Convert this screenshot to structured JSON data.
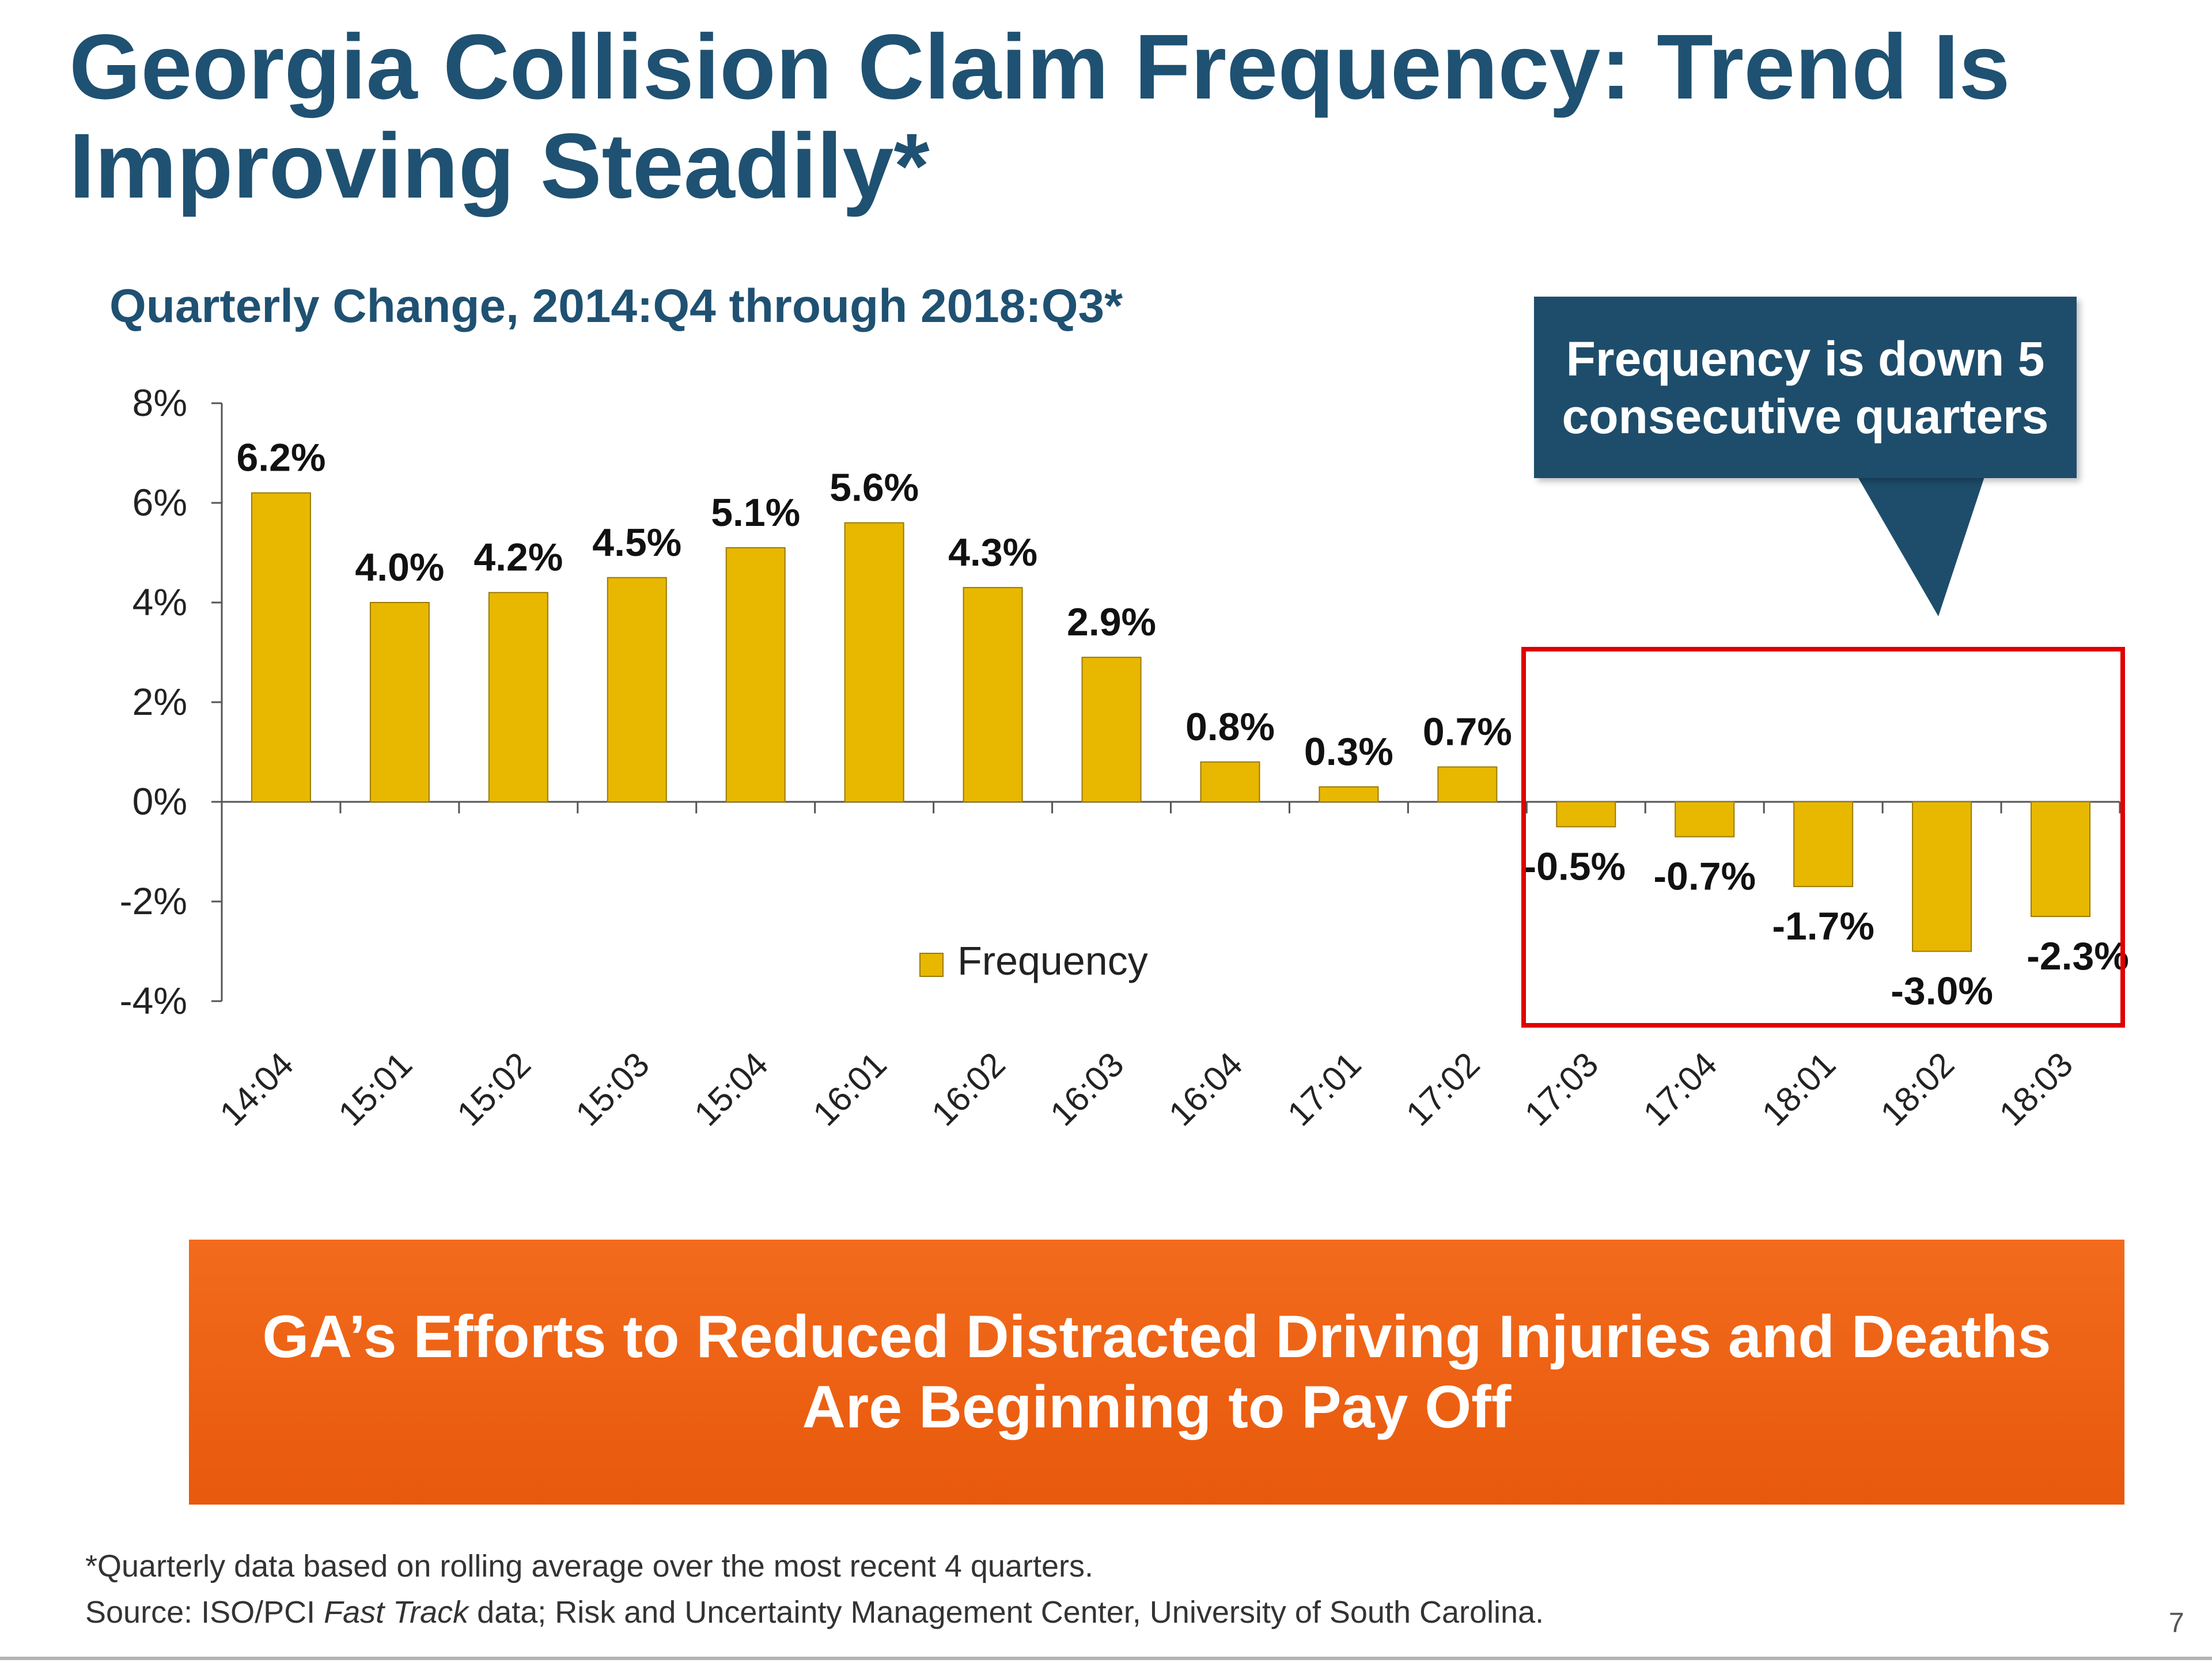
{
  "slide": {
    "title": "Georgia Collision Claim Frequency: Trend Is Improving Steadily*",
    "subtitle": "Quarterly Change, 2014:Q4 through 2018:Q3*",
    "callout": "Frequency is down 5 consecutive quarters",
    "banner": "GA’s Efforts to Reduced Distracted Driving Injuries and Deaths Are Beginning to Pay Off",
    "footnote_1": "*Quarterly data based on rolling average over the most recent 4 quarters.",
    "footnote_2_prefix": "Source: ISO/PCI ",
    "footnote_2_italic": "Fast Track",
    "footnote_2_suffix": " data; Risk and Uncertainty Management Center, University of South Carolina.",
    "page_number": "7"
  },
  "colors": {
    "title": "#1f5172",
    "bar": "#e8b800",
    "callout_bg": "#1e4d6b",
    "highlight_box": "#e00000",
    "banner": "#f26b1d"
  },
  "chart_data": {
    "type": "bar",
    "categories": [
      "14:04",
      "15:01",
      "15:02",
      "15:03",
      "15:04",
      "16:01",
      "16:02",
      "16:03",
      "16:04",
      "17:01",
      "17:02",
      "17:03",
      "17:04",
      "18:01",
      "18:02",
      "18:03"
    ],
    "series": [
      {
        "name": "Frequency",
        "values": [
          6.2,
          4.0,
          4.2,
          4.5,
          5.1,
          5.6,
          4.3,
          2.9,
          0.8,
          0.3,
          0.7,
          -0.5,
          -0.7,
          -1.7,
          -3.0,
          -2.3
        ]
      }
    ],
    "data_labels": [
      "6.2%",
      "4.0%",
      "4.2%",
      "4.5%",
      "5.1%",
      "5.6%",
      "4.3%",
      "2.9%",
      "0.8%",
      "0.3%",
      "0.7%",
      "-0.5%",
      "-0.7%",
      "-1.7%",
      "-3.0%",
      "-2.3%"
    ],
    "ylim": [
      -4,
      8
    ],
    "yticks": [
      -4,
      -2,
      0,
      2,
      4,
      6,
      8
    ],
    "ytick_labels": [
      "-4%",
      "-2%",
      "0%",
      "2%",
      "4%",
      "6%",
      "8%"
    ],
    "xlabel": "",
    "ylabel": "",
    "legend": {
      "label": "Frequency",
      "position": "bottom-center"
    },
    "highlighted_categories": [
      "17:03",
      "17:04",
      "18:01",
      "18:02",
      "18:03"
    ]
  }
}
